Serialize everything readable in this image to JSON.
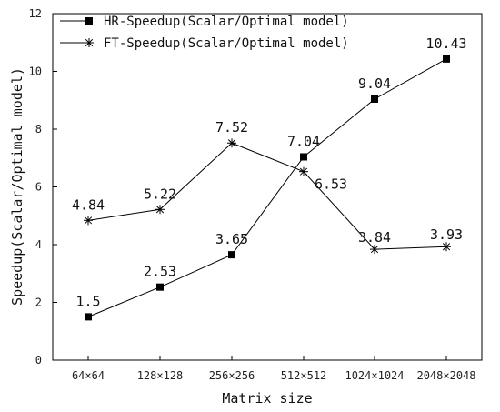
{
  "chart_data": {
    "type": "line",
    "categories": [
      "64×64",
      "128×128",
      "256×256",
      "512×512",
      "1024×1024",
      "2048×2048"
    ],
    "series": [
      {
        "name": "HR-Speedup(Scalar/Optimal model)",
        "marker": "square",
        "color": "#000000",
        "values": [
          1.5,
          2.53,
          3.65,
          7.04,
          9.04,
          10.43
        ],
        "labels": [
          "1.5",
          "2.53",
          "3.65",
          "7.04",
          "9.04",
          "10.43"
        ]
      },
      {
        "name": "FT-Speedup(Scalar/Optimal model)",
        "marker": "asterisk",
        "color": "#000000",
        "values": [
          4.84,
          5.22,
          7.52,
          6.53,
          3.84,
          3.93
        ],
        "labels": [
          "4.84",
          "5.22",
          "7.52",
          "6.53",
          "3.84",
          "3.93"
        ]
      }
    ],
    "xlabel": "Matrix size",
    "ylabel": "Speedup(Scalar/Optimal model)",
    "ylim": [
      0,
      12
    ],
    "yticks": [
      "0",
      "2",
      "4",
      "6",
      "8",
      "10",
      "12"
    ],
    "grid": false,
    "legend_position": "top-left"
  }
}
